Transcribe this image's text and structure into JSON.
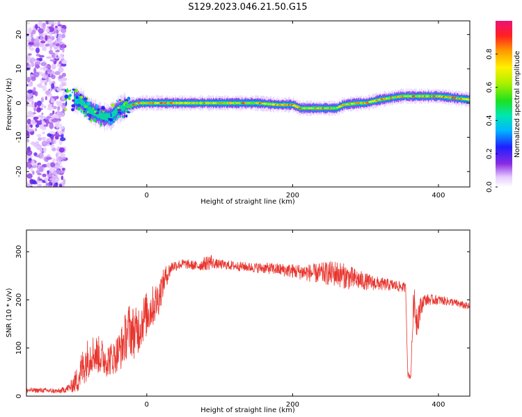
{
  "page": {
    "title": "S129.2023.046.21.50.G15"
  },
  "chart_data": [
    {
      "type": "heatmap",
      "title": "S129.2023.046.21.50.G15",
      "xlabel": "Height of straight line (km)",
      "ylabel": "Frequency (Hz)",
      "xlim": [
        -165,
        443
      ],
      "ylim": [
        -24.5,
        24
      ],
      "x_ticks": [
        0,
        200,
        400
      ],
      "x_tick_labels": [
        "0",
        "200",
        "400"
      ],
      "y_ticks": [
        -20,
        -10,
        0,
        10,
        20
      ],
      "y_tick_labels": [
        "-20",
        "-10",
        "0",
        "10",
        "20"
      ],
      "grid": false,
      "colorbar": {
        "label": "Normalized spectral amplitude",
        "range": [
          0,
          1
        ],
        "ticks": [
          0.0,
          0.2,
          0.4,
          0.6,
          0.8
        ],
        "tick_labels": [
          "0.0",
          "0.2",
          "0.4",
          "0.6",
          "0.8"
        ],
        "colormap": "rainbow-from-lavender-to-magenta"
      },
      "ridge": {
        "description_values_in_data_units": true,
        "x": [
          -100,
          -90,
          -80,
          -70,
          -60,
          -50,
          -40,
          -30,
          -20,
          -10,
          0,
          50,
          100,
          150,
          180,
          200,
          210,
          220,
          260,
          270,
          290,
          300,
          320,
          350,
          400,
          443
        ],
        "y": [
          1,
          0.5,
          -2,
          -3,
          -4,
          -4,
          -2,
          -1,
          -0.5,
          0,
          0,
          0,
          0,
          0,
          -0.5,
          -0.5,
          -1.5,
          -1.5,
          -1.5,
          -0.5,
          0,
          0,
          1,
          2,
          2,
          1
        ],
        "peak_amplitude": 0.9
      },
      "noise_region": {
        "x_range": [
          -165,
          -112
        ],
        "y_range": [
          -24.5,
          24
        ]
      }
    },
    {
      "type": "line",
      "title": "",
      "xlabel": "Height of straight line (km)",
      "ylabel": "SNR (10 * v/v)",
      "xlim": [
        -165,
        443
      ],
      "ylim": [
        0,
        345
      ],
      "x_ticks": [
        0,
        200,
        400
      ],
      "x_tick_labels": [
        "0",
        "200",
        "400"
      ],
      "y_ticks": [
        0,
        100,
        200,
        300
      ],
      "y_tick_labels": [
        "0",
        "100",
        "200",
        "300"
      ],
      "grid": false,
      "series": [
        {
          "color": "#e8352e",
          "x": [
            -165,
            -140,
            -120,
            -105,
            -95,
            -85,
            -75,
            -65,
            -55,
            -45,
            -35,
            -25,
            -15,
            -5,
            5,
            15,
            25,
            35,
            50,
            70,
            88,
            92,
            110,
            140,
            170,
            200,
            230,
            260,
            280,
            300,
            320,
            340,
            355,
            358,
            362,
            366,
            370,
            380,
            400,
            420,
            443
          ],
          "y": [
            12,
            12,
            10,
            18,
            35,
            70,
            90,
            85,
            75,
            80,
            100,
            140,
            130,
            160,
            180,
            200,
            245,
            270,
            275,
            270,
            280,
            275,
            272,
            268,
            265,
            260,
            255,
            255,
            245,
            238,
            233,
            230,
            225,
            45,
            40,
            200,
            160,
            200,
            200,
            195,
            185
          ],
          "noise_amplitude": [
            5,
            5,
            5,
            10,
            30,
            45,
            40,
            40,
            35,
            35,
            45,
            55,
            55,
            50,
            45,
            40,
            25,
            12,
            10,
            10,
            18,
            10,
            10,
            10,
            12,
            15,
            20,
            28,
            25,
            18,
            14,
            12,
            10,
            6,
            6,
            30,
            40,
            12,
            10,
            8,
            8
          ]
        }
      ]
    }
  ]
}
